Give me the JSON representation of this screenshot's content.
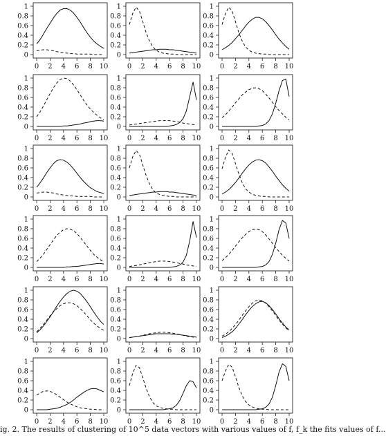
{
  "caption": "ig. 2. The results of clustering of 10^5 data vectors with various values of f, f_k the fits values of f...",
  "chart_data": {
    "type": "line",
    "grid": false,
    "legend": "none",
    "x": [
      0,
      0.5,
      1,
      1.5,
      2,
      2.5,
      3,
      3.5,
      4,
      4.5,
      5,
      5.5,
      6,
      6.5,
      7,
      7.5,
      8,
      8.5,
      9,
      9.5,
      10
    ],
    "xlim": [
      0,
      10
    ],
    "ylim": [
      0,
      1
    ],
    "xticks": [
      "0",
      "2",
      "4",
      "6",
      "8",
      "10"
    ],
    "yticks": [
      "0",
      "0.2",
      "0.4",
      "0.6",
      "0.8",
      "1"
    ],
    "panels": [
      {
        "solid": [
          0.22,
          0.31,
          0.42,
          0.54,
          0.65,
          0.76,
          0.85,
          0.92,
          0.95,
          0.95,
          0.92,
          0.86,
          0.77,
          0.67,
          0.56,
          0.45,
          0.36,
          0.28,
          0.22,
          0.17,
          0.13
        ],
        "dashed": [
          0.08,
          0.09,
          0.1,
          0.1,
          0.09,
          0.08,
          0.06,
          0.05,
          0.04,
          0.03,
          0.02,
          0.02,
          0.01,
          0.01,
          0.01,
          0.01,
          0.01,
          0.0,
          0.0,
          0.0,
          0.0
        ]
      },
      {
        "solid": [
          0.03,
          0.04,
          0.05,
          0.06,
          0.07,
          0.08,
          0.09,
          0.1,
          0.1,
          0.11,
          0.11,
          0.11,
          0.1,
          0.1,
          0.09,
          0.08,
          0.07,
          0.06,
          0.05,
          0.04,
          0.03
        ],
        "dashed": [
          0.62,
          0.85,
          0.98,
          0.9,
          0.68,
          0.45,
          0.28,
          0.16,
          0.09,
          0.05,
          0.03,
          0.02,
          0.01,
          0.01,
          0.0,
          0.0,
          0.0,
          0.0,
          0.0,
          0.0,
          0.0
        ]
      },
      {
        "solid": [
          0.1,
          0.14,
          0.19,
          0.25,
          0.33,
          0.41,
          0.5,
          0.59,
          0.67,
          0.73,
          0.77,
          0.77,
          0.74,
          0.68,
          0.6,
          0.51,
          0.41,
          0.32,
          0.24,
          0.17,
          0.11
        ],
        "dashed": [
          0.62,
          0.85,
          0.98,
          0.9,
          0.68,
          0.45,
          0.28,
          0.16,
          0.09,
          0.05,
          0.03,
          0.02,
          0.01,
          0.01,
          0.0,
          0.0,
          0.0,
          0.0,
          0.0,
          0.0,
          0.0
        ]
      },
      {
        "solid": [
          0.0,
          0.0,
          0.0,
          0.0,
          0.0,
          0.0,
          0.0,
          0.0,
          0.01,
          0.01,
          0.02,
          0.03,
          0.04,
          0.05,
          0.07,
          0.08,
          0.1,
          0.11,
          0.12,
          0.12,
          0.11
        ],
        "dashed": [
          0.2,
          0.3,
          0.42,
          0.55,
          0.68,
          0.8,
          0.9,
          0.97,
          1.0,
          0.99,
          0.94,
          0.86,
          0.76,
          0.65,
          0.54,
          0.44,
          0.36,
          0.29,
          0.23,
          0.18,
          0.14
        ]
      },
      {
        "solid": [
          0.0,
          0.0,
          0.0,
          0.0,
          0.0,
          0.0,
          0.0,
          0.0,
          0.0,
          0.0,
          0.0,
          0.0,
          0.01,
          0.02,
          0.04,
          0.08,
          0.16,
          0.32,
          0.62,
          0.92,
          0.55
        ],
        "dashed": [
          0.03,
          0.04,
          0.05,
          0.06,
          0.07,
          0.08,
          0.09,
          0.1,
          0.11,
          0.12,
          0.12,
          0.12,
          0.12,
          0.11,
          0.1,
          0.09,
          0.07,
          0.06,
          0.05,
          0.04,
          0.03
        ]
      },
      {
        "solid": [
          0.0,
          0.0,
          0.0,
          0.0,
          0.0,
          0.0,
          0.0,
          0.0,
          0.0,
          0.0,
          0.0,
          0.01,
          0.02,
          0.05,
          0.12,
          0.26,
          0.48,
          0.74,
          0.95,
          0.98,
          0.62
        ],
        "dashed": [
          0.18,
          0.24,
          0.32,
          0.4,
          0.49,
          0.57,
          0.65,
          0.71,
          0.76,
          0.79,
          0.8,
          0.78,
          0.74,
          0.67,
          0.59,
          0.5,
          0.41,
          0.33,
          0.26,
          0.19,
          0.14
        ]
      },
      {
        "solid": [
          0.2,
          0.29,
          0.39,
          0.5,
          0.6,
          0.69,
          0.75,
          0.77,
          0.76,
          0.72,
          0.66,
          0.58,
          0.49,
          0.4,
          0.32,
          0.25,
          0.19,
          0.15,
          0.11,
          0.09,
          0.07
        ],
        "dashed": [
          0.08,
          0.09,
          0.1,
          0.1,
          0.09,
          0.08,
          0.06,
          0.05,
          0.04,
          0.03,
          0.02,
          0.02,
          0.01,
          0.01,
          0.01,
          0.01,
          0.01,
          0.0,
          0.0,
          0.0,
          0.0
        ]
      },
      {
        "solid": [
          0.03,
          0.04,
          0.05,
          0.06,
          0.07,
          0.08,
          0.09,
          0.1,
          0.1,
          0.11,
          0.11,
          0.11,
          0.1,
          0.1,
          0.09,
          0.08,
          0.07,
          0.06,
          0.05,
          0.04,
          0.03
        ],
        "dashed": [
          0.6,
          0.83,
          0.96,
          0.88,
          0.66,
          0.44,
          0.27,
          0.15,
          0.08,
          0.05,
          0.03,
          0.02,
          0.01,
          0.01,
          0.0,
          0.0,
          0.0,
          0.0,
          0.0,
          0.0,
          0.0
        ]
      },
      {
        "solid": [
          0.06,
          0.1,
          0.15,
          0.22,
          0.3,
          0.39,
          0.49,
          0.58,
          0.66,
          0.72,
          0.76,
          0.77,
          0.75,
          0.7,
          0.62,
          0.53,
          0.43,
          0.34,
          0.25,
          0.18,
          0.12
        ],
        "dashed": [
          0.58,
          0.82,
          0.97,
          0.9,
          0.69,
          0.47,
          0.3,
          0.17,
          0.1,
          0.06,
          0.03,
          0.02,
          0.01,
          0.01,
          0.0,
          0.0,
          0.0,
          0.0,
          0.0,
          0.0,
          0.0
        ]
      },
      {
        "solid": [
          0.0,
          0.0,
          0.0,
          0.0,
          0.0,
          0.0,
          0.0,
          0.0,
          0.0,
          0.01,
          0.01,
          0.02,
          0.02,
          0.03,
          0.04,
          0.05,
          0.06,
          0.07,
          0.08,
          0.08,
          0.07
        ],
        "dashed": [
          0.12,
          0.19,
          0.27,
          0.37,
          0.47,
          0.57,
          0.66,
          0.73,
          0.78,
          0.8,
          0.79,
          0.76,
          0.7,
          0.62,
          0.53,
          0.44,
          0.35,
          0.27,
          0.21,
          0.16,
          0.11
        ]
      },
      {
        "solid": [
          0.0,
          0.0,
          0.0,
          0.0,
          0.0,
          0.0,
          0.0,
          0.0,
          0.0,
          0.0,
          0.0,
          0.0,
          0.0,
          0.01,
          0.02,
          0.05,
          0.11,
          0.25,
          0.55,
          0.95,
          0.62
        ],
        "dashed": [
          0.02,
          0.03,
          0.04,
          0.05,
          0.07,
          0.08,
          0.1,
          0.11,
          0.12,
          0.13,
          0.13,
          0.13,
          0.12,
          0.11,
          0.1,
          0.08,
          0.07,
          0.05,
          0.04,
          0.03,
          0.02
        ]
      },
      {
        "solid": [
          0.0,
          0.0,
          0.0,
          0.0,
          0.0,
          0.0,
          0.0,
          0.0,
          0.0,
          0.0,
          0.0,
          0.01,
          0.02,
          0.05,
          0.12,
          0.27,
          0.5,
          0.78,
          0.97,
          0.92,
          0.6
        ],
        "dashed": [
          0.14,
          0.2,
          0.27,
          0.35,
          0.44,
          0.53,
          0.61,
          0.68,
          0.74,
          0.78,
          0.79,
          0.78,
          0.74,
          0.67,
          0.59,
          0.5,
          0.41,
          0.33,
          0.25,
          0.19,
          0.13
        ]
      },
      {
        "solid": [
          0.12,
          0.18,
          0.26,
          0.35,
          0.45,
          0.56,
          0.67,
          0.77,
          0.86,
          0.93,
          0.98,
          1.0,
          0.98,
          0.93,
          0.85,
          0.76,
          0.66,
          0.55,
          0.45,
          0.36,
          0.29
        ],
        "dashed": [
          0.14,
          0.21,
          0.29,
          0.38,
          0.47,
          0.55,
          0.62,
          0.68,
          0.72,
          0.74,
          0.74,
          0.72,
          0.68,
          0.62,
          0.55,
          0.47,
          0.39,
          0.32,
          0.26,
          0.21,
          0.17
        ]
      },
      {
        "solid": [
          0.02,
          0.03,
          0.04,
          0.05,
          0.06,
          0.07,
          0.08,
          0.09,
          0.1,
          0.1,
          0.1,
          0.1,
          0.1,
          0.09,
          0.09,
          0.08,
          0.07,
          0.06,
          0.05,
          0.04,
          0.03
        ],
        "dashed": [
          0.02,
          0.03,
          0.04,
          0.05,
          0.07,
          0.08,
          0.1,
          0.11,
          0.12,
          0.13,
          0.13,
          0.13,
          0.12,
          0.11,
          0.1,
          0.08,
          0.07,
          0.05,
          0.04,
          0.03,
          0.02
        ]
      },
      {
        "solid": [
          0.02,
          0.05,
          0.09,
          0.14,
          0.21,
          0.3,
          0.39,
          0.49,
          0.58,
          0.66,
          0.72,
          0.76,
          0.77,
          0.74,
          0.68,
          0.6,
          0.51,
          0.41,
          0.32,
          0.24,
          0.18
        ],
        "dashed": [
          0.05,
          0.09,
          0.14,
          0.21,
          0.29,
          0.38,
          0.48,
          0.57,
          0.66,
          0.73,
          0.78,
          0.8,
          0.78,
          0.73,
          0.66,
          0.57,
          0.48,
          0.38,
          0.3,
          0.22,
          0.16
        ]
      },
      {
        "solid": [
          0.0,
          0.0,
          0.0,
          0.0,
          0.01,
          0.02,
          0.03,
          0.05,
          0.08,
          0.11,
          0.15,
          0.2,
          0.26,
          0.31,
          0.36,
          0.4,
          0.43,
          0.44,
          0.43,
          0.4,
          0.37
        ],
        "dashed": [
          0.3,
          0.35,
          0.38,
          0.39,
          0.38,
          0.35,
          0.31,
          0.26,
          0.21,
          0.16,
          0.12,
          0.09,
          0.06,
          0.04,
          0.03,
          0.02,
          0.01,
          0.01,
          0.0,
          0.0,
          0.0
        ]
      },
      {
        "solid": [
          0.0,
          0.0,
          0.0,
          0.0,
          0.0,
          0.0,
          0.0,
          0.0,
          0.0,
          0.0,
          0.0,
          0.01,
          0.02,
          0.04,
          0.09,
          0.19,
          0.34,
          0.5,
          0.6,
          0.58,
          0.45
        ],
        "dashed": [
          0.5,
          0.75,
          0.92,
          0.87,
          0.66,
          0.44,
          0.27,
          0.15,
          0.08,
          0.05,
          0.03,
          0.02,
          0.01,
          0.01,
          0.0,
          0.0,
          0.0,
          0.0,
          0.0,
          0.0,
          0.0
        ]
      },
      {
        "solid": [
          0.0,
          0.0,
          0.0,
          0.0,
          0.0,
          0.0,
          0.0,
          0.0,
          0.0,
          0.0,
          0.0,
          0.01,
          0.02,
          0.05,
          0.12,
          0.26,
          0.5,
          0.78,
          0.95,
          0.9,
          0.6
        ],
        "dashed": [
          0.6,
          0.8,
          0.94,
          0.88,
          0.68,
          0.46,
          0.29,
          0.17,
          0.1,
          0.06,
          0.03,
          0.02,
          0.01,
          0.01,
          0.0,
          0.0,
          0.0,
          0.0,
          0.0,
          0.0,
          0.0
        ]
      }
    ]
  }
}
